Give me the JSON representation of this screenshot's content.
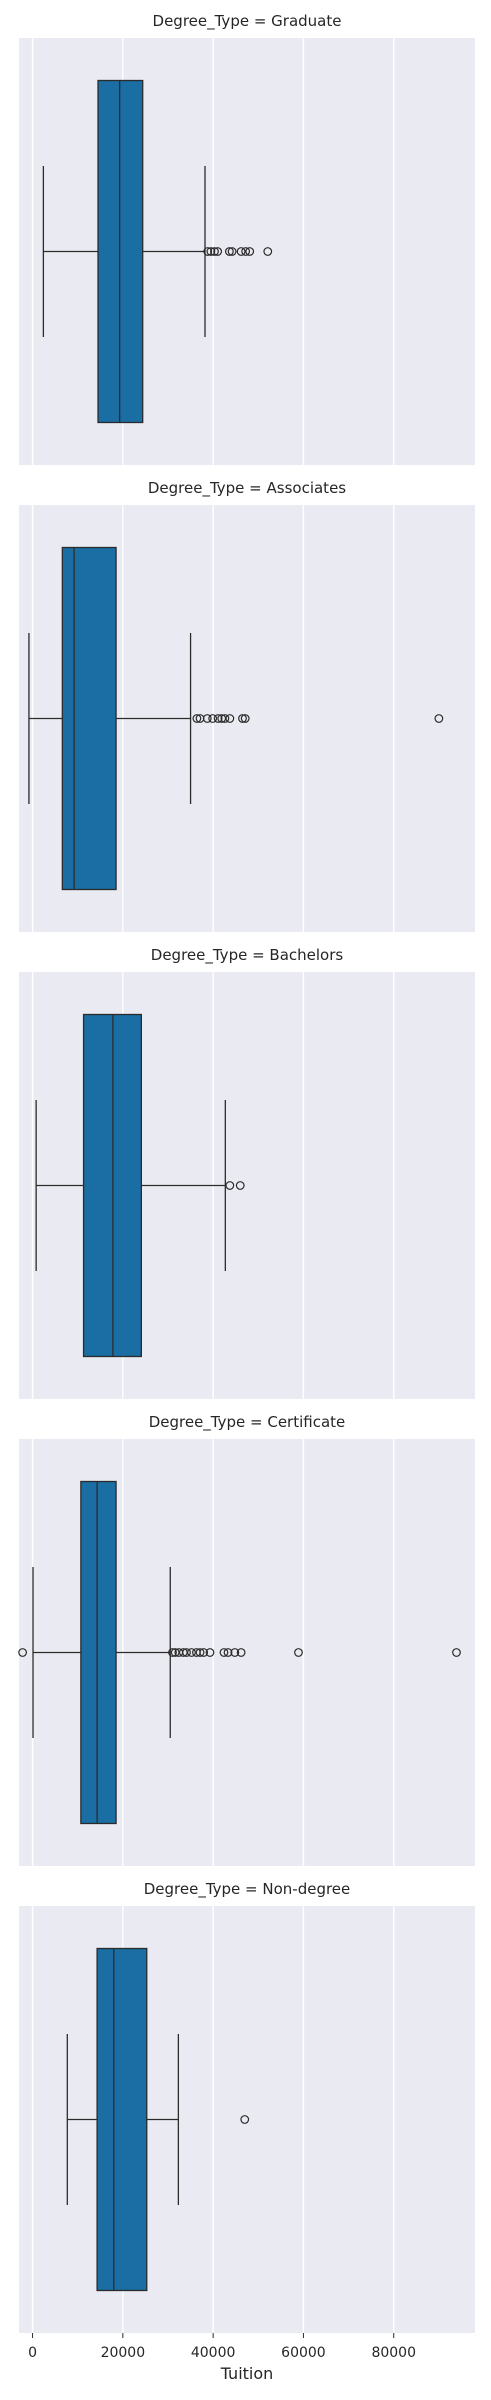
{
  "chart_data": {
    "type": "box",
    "xlabel": "Tuition",
    "xticks": [
      0,
      20000,
      40000,
      60000,
      80000
    ],
    "xlim": [
      -3000,
      98000
    ],
    "grid": true,
    "colors": {
      "box": "#1a6ea3",
      "background": "#eaeaf2",
      "grid": "#ffffff",
      "line": "#2b2b2b"
    },
    "panels": [
      {
        "title": "Degree_Type = Graduate",
        "whisker_low": 2400,
        "q1": 14500,
        "median": 19300,
        "q3": 24400,
        "whisker_high": 38200,
        "outliers": [
          38800,
          39500,
          40300,
          41000,
          43600,
          44200,
          46200,
          47200,
          48100,
          52100
        ]
      },
      {
        "title": "Degree_Type = Associates",
        "whisker_low": -800,
        "q1": 6600,
        "median": 9200,
        "q3": 18500,
        "whisker_high": 35000,
        "outliers": [
          36400,
          37100,
          38700,
          39900,
          41100,
          41900,
          42600,
          43700,
          46500,
          47100,
          90000
        ]
      },
      {
        "title": "Degree_Type = Bachelors",
        "whisker_low": 800,
        "q1": 11300,
        "median": 17800,
        "q3": 24100,
        "whisker_high": 42700,
        "outliers": [
          43700,
          46000
        ]
      },
      {
        "title": "Degree_Type = Certificate",
        "whisker_low": 100,
        "q1": 10700,
        "median": 14300,
        "q3": 18500,
        "whisker_high": 30500,
        "outliers": [
          -2200,
          31000,
          31600,
          32400,
          33400,
          34100,
          35200,
          36300,
          37100,
          37900,
          39300,
          42400,
          43300,
          44800,
          46200,
          58900,
          93900
        ]
      },
      {
        "title": "Degree_Type = Non-degree",
        "whisker_low": 7700,
        "q1": 14300,
        "median": 18000,
        "q3": 25300,
        "whisker_high": 32300,
        "outliers": [
          47000
        ]
      }
    ]
  }
}
